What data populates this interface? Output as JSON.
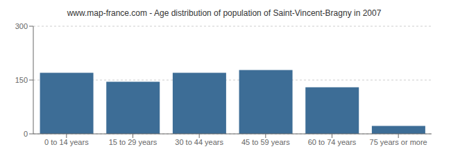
{
  "chart_data": {
    "type": "bar",
    "title": "www.map-france.com - Age distribution of population of Saint-Vincent-Bragny in 2007",
    "categories": [
      "0 to 14 years",
      "15 to 29 years",
      "30 to 44 years",
      "45 to 59 years",
      "60 to 74 years",
      "75 years or more"
    ],
    "values": [
      170,
      145,
      170,
      178,
      130,
      22
    ],
    "color": "#3d6d96",
    "ylim": [
      0,
      300
    ],
    "yticks": [
      0,
      150,
      300
    ],
    "grid": true
  }
}
